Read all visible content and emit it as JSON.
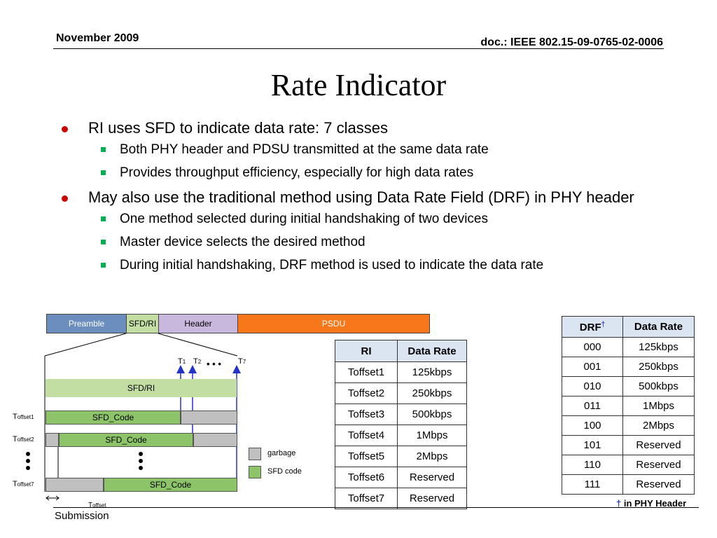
{
  "header": {
    "date": "November 2009",
    "doc": "doc.: IEEE 802.15-09-0765-02-0006"
  },
  "title": "Rate Indicator",
  "bullets": [
    {
      "text": "RI uses SFD to indicate data rate:  7 classes",
      "sub": [
        "Both PHY header and PDSU transmitted at the same data rate",
        "Provides throughput efficiency, especially for high data rates"
      ]
    },
    {
      "text": "May also use the traditional method using Data Rate Field (DRF) in PHY header",
      "sub": [
        "One method selected during initial handshaking of two devices",
        "Master device selects the desired method",
        "During initial handshaking, DRF method is used to indicate the data rate"
      ]
    }
  ],
  "frame": {
    "preamble": "Preamble",
    "sfd_ri": "SFD/RI",
    "header": "Header",
    "psdu": "PSDU"
  },
  "diagram": {
    "sfd_ri_label": "SFD/RI",
    "sfd_code": "SFD_Code",
    "row_labels": [
      {
        "t": "T",
        "s": "offset1"
      },
      {
        "t": "T",
        "s": "offset2"
      },
      {
        "t": "T",
        "s": "offset7"
      }
    ],
    "t1": "T",
    "t1s": "1",
    "t2": "T",
    "t2s": "2",
    "t7": "T",
    "t7s": "7",
    "dots": "• • •",
    "legend_garbage": "garbage",
    "legend_sfd": "SFD code",
    "toffset_t": "T",
    "toffset_s": "offset",
    "submission": "Submission"
  },
  "ri_table": {
    "headers": [
      "RI",
      "Data Rate"
    ],
    "rows": [
      [
        "Toffset1",
        "125kbps"
      ],
      [
        "Toffset2",
        "250kbps"
      ],
      [
        "Toffset3",
        "500kbps"
      ],
      [
        "Toffset4",
        "1Mbps"
      ],
      [
        "Toffset5",
        "2Mbps"
      ],
      [
        "Toffset6",
        "Reserved"
      ],
      [
        "Toffset7",
        "Reserved"
      ]
    ]
  },
  "drf_table": {
    "headers": [
      "DRF",
      "Data Rate"
    ],
    "dagger": "†",
    "rows": [
      [
        "000",
        "125kbps"
      ],
      [
        "001",
        "250kbps"
      ],
      [
        "010",
        "500kbps"
      ],
      [
        "011",
        "1Mbps"
      ],
      [
        "100",
        "2Mbps"
      ],
      [
        "101",
        "Reserved"
      ],
      [
        "110",
        "Reserved"
      ],
      [
        "111",
        "Reserved"
      ]
    ]
  },
  "footnote": {
    "dagger": "†",
    "text": " in PHY Header"
  },
  "colors": {
    "preamble": "#6c8ebf",
    "sfd_ri": "#c3dea2",
    "header": "#c9b8dd",
    "psdu": "#f7771a",
    "garbage": "#c0c0c0",
    "sfd_code": "#8dc46a",
    "arrow": "#2233cc"
  }
}
